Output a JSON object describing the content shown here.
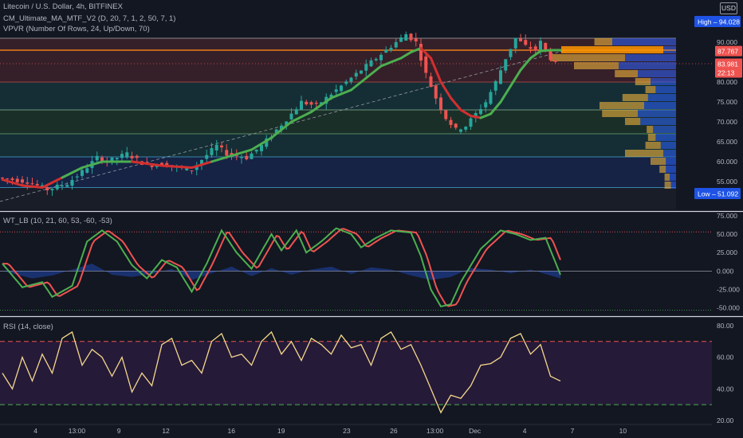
{
  "header": {
    "title": "Litecoin / U.S. Dollar, 4h, BITFINEX",
    "indicator_ma": "CM_Ultimate_MA_MTF_V2 (D, 20, 7, 1, 2, 50, 7, 1)",
    "indicator_vpvr": "VPVR (Number Of Rows, 24, Up/Down, 70)",
    "currency": "USD"
  },
  "panes": {
    "wt_title": "WT_LB (10, 21, 60, 53, -60, -53)",
    "rsi_title": "RSI (14, close)"
  },
  "colors": {
    "background": "#131722",
    "up": "#26a69a",
    "down": "#ef5350",
    "ma_up": "#4caf50",
    "ma_down": "#d32f2f",
    "vpvr_poc": "#ff9800",
    "vpvr_blue": "#2962ff",
    "rsi_line": "#f5d98b",
    "rsi_band": "#2a1b3d"
  },
  "chart_data": [
    {
      "type": "candlestick",
      "name": "price",
      "title": "Litecoin / U.S. Dollar, 4h, BITFINEX",
      "ylim": [
        48,
        97
      ],
      "y_ticks": [
        "95.000",
        "90.000",
        "85.000",
        "80.000",
        "75.000",
        "70.000",
        "65.000",
        "60.000",
        "55.000"
      ],
      "x_ticks": [
        "4",
        "13:00",
        "9",
        "12",
        "16",
        "19",
        "23",
        "26",
        "13:00",
        "Dec",
        "4",
        "7",
        "10"
      ],
      "price_path": [
        [
          0,
          56
        ],
        [
          6,
          55
        ],
        [
          10,
          53
        ],
        [
          14,
          54.5
        ],
        [
          17,
          57.5
        ],
        [
          20,
          61
        ],
        [
          22,
          60
        ],
        [
          26,
          62
        ],
        [
          30,
          59
        ],
        [
          33,
          59.5
        ],
        [
          36,
          58.5
        ],
        [
          39,
          58
        ],
        [
          41,
          60.5
        ],
        [
          44,
          64
        ],
        [
          46,
          62
        ],
        [
          50,
          61
        ],
        [
          53,
          64
        ],
        [
          56,
          68
        ],
        [
          59,
          72
        ],
        [
          61,
          75
        ],
        [
          64,
          74
        ],
        [
          67,
          77
        ],
        [
          70,
          80
        ],
        [
          73,
          83
        ],
        [
          76,
          86
        ],
        [
          78,
          88
        ],
        [
          80,
          90
        ],
        [
          82,
          92
        ],
        [
          84,
          90
        ],
        [
          85,
          86
        ],
        [
          86,
          82
        ],
        [
          88,
          76
        ],
        [
          90,
          71
        ],
        [
          92,
          68
        ],
        [
          94,
          69
        ],
        [
          96,
          72
        ],
        [
          98,
          75
        ],
        [
          100,
          80
        ],
        [
          102,
          86
        ],
        [
          104,
          91
        ],
        [
          106,
          89
        ],
        [
          108,
          88
        ],
        [
          109,
          90
        ],
        [
          110,
          88
        ],
        [
          111,
          86
        ],
        [
          112,
          84.5
        ]
      ],
      "ma_path": [
        [
          0,
          55.5
        ],
        [
          4,
          54
        ],
        [
          8,
          53.5
        ],
        [
          12,
          56
        ],
        [
          16,
          58.5
        ],
        [
          20,
          60
        ],
        [
          26,
          60
        ],
        [
          32,
          59
        ],
        [
          38,
          58.5
        ],
        [
          42,
          60
        ],
        [
          46,
          61.5
        ],
        [
          50,
          63
        ],
        [
          54,
          66
        ],
        [
          58,
          70
        ],
        [
          62,
          72.5
        ],
        [
          66,
          76
        ],
        [
          70,
          78
        ],
        [
          73,
          81
        ],
        [
          76,
          84
        ],
        [
          80,
          86
        ],
        [
          82,
          87.5
        ],
        [
          84,
          88.5
        ],
        [
          86,
          86
        ],
        [
          88,
          80
        ],
        [
          90,
          76
        ],
        [
          92,
          73
        ],
        [
          94,
          71.5
        ],
        [
          96,
          71
        ],
        [
          98,
          72
        ],
        [
          100,
          75
        ],
        [
          102,
          79
        ],
        [
          104,
          83
        ],
        [
          106,
          86
        ],
        [
          108,
          87.8
        ],
        [
          110,
          88
        ],
        [
          112,
          88
        ]
      ],
      "ma_down_ranges": [
        [
          0,
          10
        ],
        [
          28,
          40
        ],
        [
          84,
          96
        ]
      ],
      "support_lines": [
        91,
        88,
        80,
        73,
        67,
        61.2,
        53.5
      ],
      "zones": [
        {
          "from": 80,
          "to": 91,
          "color": "#ef5350"
        },
        {
          "from": 73,
          "to": 80,
          "color": "#26a69a"
        },
        {
          "from": 67,
          "to": 73,
          "color": "#4caf50"
        },
        {
          "from": 61.2,
          "to": 67,
          "color": "#26a69a"
        },
        {
          "from": 53.5,
          "to": 61.2,
          "color": "#2962ff"
        }
      ],
      "vpvr_rows": [
        {
          "price": 90,
          "up": 0.14,
          "down": 0.5
        },
        {
          "price": 88,
          "up": 0.8,
          "down": 0.1
        },
        {
          "price": 86,
          "up": 0.58,
          "down": 0.4
        },
        {
          "price": 84,
          "up": 0.35,
          "down": 0.45
        },
        {
          "price": 82,
          "up": 0.18,
          "down": 0.3
        },
        {
          "price": 80,
          "up": 0.12,
          "down": 0.2
        },
        {
          "price": 78,
          "up": 0.08,
          "down": 0.16
        },
        {
          "price": 76,
          "up": 0.2,
          "down": 0.22
        },
        {
          "price": 74,
          "up": 0.35,
          "down": 0.25
        },
        {
          "price": 72,
          "up": 0.28,
          "down": 0.3
        },
        {
          "price": 70,
          "up": 0.12,
          "down": 0.28
        },
        {
          "price": 68,
          "up": 0.05,
          "down": 0.18
        },
        {
          "price": 66,
          "up": 0.06,
          "down": 0.16
        },
        {
          "price": 64,
          "up": 0.12,
          "down": 0.12
        },
        {
          "price": 62,
          "up": 0.3,
          "down": 0.1
        },
        {
          "price": 60,
          "up": 0.12,
          "down": 0.08
        },
        {
          "price": 58,
          "up": 0.05,
          "down": 0.08
        },
        {
          "price": 56,
          "up": 0.04,
          "down": 0.05
        },
        {
          "price": 54,
          "up": 0.05,
          "down": 0.04
        }
      ],
      "high_label": "High",
      "high_value": "94.028",
      "low_label": "Low",
      "low_value": "51.092",
      "price_badges": [
        {
          "value": "87.767",
          "price": 87.767,
          "color": "#ef5350"
        },
        {
          "value": "83.981",
          "price": 84.6,
          "color": "#ef5350"
        },
        {
          "value": "22:13",
          "price": 82.4,
          "color": "#ef5350"
        }
      ]
    },
    {
      "type": "line",
      "name": "wt",
      "title": "WT_LB (10, 21, 60, 53, -60, -53)",
      "ylim": [
        -60,
        78
      ],
      "y_ticks": [
        "75.000",
        "50.000",
        "25.000",
        "0.000",
        "-25.000",
        "-50.000"
      ],
      "levels": [
        53,
        -53
      ],
      "wt1_path": [
        [
          0,
          10
        ],
        [
          4,
          -22
        ],
        [
          8,
          -15
        ],
        [
          10,
          -35
        ],
        [
          14,
          -20
        ],
        [
          17,
          40
        ],
        [
          20,
          55
        ],
        [
          23,
          40
        ],
        [
          26,
          8
        ],
        [
          29,
          -10
        ],
        [
          32,
          15
        ],
        [
          35,
          5
        ],
        [
          38,
          -28
        ],
        [
          41,
          10
        ],
        [
          44,
          55
        ],
        [
          47,
          25
        ],
        [
          50,
          3
        ],
        [
          54,
          50
        ],
        [
          56,
          28
        ],
        [
          59,
          55
        ],
        [
          61,
          25
        ],
        [
          64,
          40
        ],
        [
          67,
          58
        ],
        [
          70,
          50
        ],
        [
          72,
          32
        ],
        [
          75,
          45
        ],
        [
          78,
          55
        ],
        [
          82,
          52
        ],
        [
          84,
          20
        ],
        [
          86,
          -25
        ],
        [
          88,
          -48
        ],
        [
          90,
          -45
        ],
        [
          92,
          -15
        ],
        [
          96,
          30
        ],
        [
          100,
          55
        ],
        [
          103,
          50
        ],
        [
          106,
          42
        ],
        [
          109,
          45
        ],
        [
          112,
          -5
        ]
      ],
      "wt2_offset": 1.2,
      "histogram_path": [
        [
          0,
          0
        ],
        [
          6,
          -10
        ],
        [
          10,
          -6
        ],
        [
          14,
          2
        ],
        [
          18,
          10
        ],
        [
          22,
          -5
        ],
        [
          26,
          -8
        ],
        [
          30,
          -4
        ],
        [
          34,
          3
        ],
        [
          38,
          -12
        ],
        [
          42,
          -3
        ],
        [
          46,
          6
        ],
        [
          50,
          -7
        ],
        [
          54,
          4
        ],
        [
          58,
          -5
        ],
        [
          62,
          2
        ],
        [
          66,
          6
        ],
        [
          70,
          -4
        ],
        [
          74,
          5
        ],
        [
          78,
          2
        ],
        [
          82,
          -6
        ],
        [
          86,
          -12
        ],
        [
          90,
          -8
        ],
        [
          94,
          4
        ],
        [
          98,
          2
        ],
        [
          102,
          -3
        ],
        [
          106,
          2
        ],
        [
          110,
          -6
        ],
        [
          112,
          -10
        ]
      ]
    },
    {
      "type": "line",
      "name": "rsi",
      "title": "RSI (14, close)",
      "ylim": [
        18,
        85
      ],
      "y_ticks": [
        "80.00",
        "60.00",
        "40.00",
        "20.00"
      ],
      "levels": [
        70,
        30
      ],
      "path": [
        [
          0,
          50
        ],
        [
          2,
          40
        ],
        [
          4,
          60
        ],
        [
          6,
          45
        ],
        [
          8,
          62
        ],
        [
          10,
          50
        ],
        [
          12,
          72
        ],
        [
          14,
          76
        ],
        [
          16,
          55
        ],
        [
          18,
          65
        ],
        [
          20,
          60
        ],
        [
          22,
          48
        ],
        [
          24,
          60
        ],
        [
          26,
          38
        ],
        [
          28,
          50
        ],
        [
          30,
          42
        ],
        [
          32,
          68
        ],
        [
          34,
          72
        ],
        [
          36,
          55
        ],
        [
          38,
          58
        ],
        [
          40,
          50
        ],
        [
          42,
          70
        ],
        [
          44,
          75
        ],
        [
          46,
          60
        ],
        [
          48,
          62
        ],
        [
          50,
          55
        ],
        [
          52,
          70
        ],
        [
          54,
          76
        ],
        [
          56,
          62
        ],
        [
          58,
          70
        ],
        [
          60,
          58
        ],
        [
          62,
          72
        ],
        [
          64,
          68
        ],
        [
          66,
          62
        ],
        [
          68,
          74
        ],
        [
          70,
          66
        ],
        [
          72,
          68
        ],
        [
          74,
          55
        ],
        [
          76,
          72
        ],
        [
          78,
          76
        ],
        [
          80,
          65
        ],
        [
          82,
          68
        ],
        [
          84,
          55
        ],
        [
          86,
          40
        ],
        [
          88,
          25
        ],
        [
          90,
          36
        ],
        [
          92,
          34
        ],
        [
          94,
          42
        ],
        [
          96,
          55
        ],
        [
          98,
          56
        ],
        [
          100,
          60
        ],
        [
          102,
          72
        ],
        [
          104,
          75
        ],
        [
          106,
          62
        ],
        [
          108,
          68
        ],
        [
          110,
          48
        ],
        [
          112,
          45
        ]
      ]
    }
  ]
}
